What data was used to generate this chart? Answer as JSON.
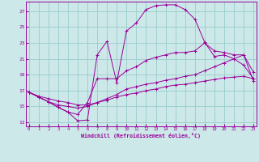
{
  "xlabel": "Windchill (Refroidissement éolien,°C)",
  "bg_color": "#cce8e8",
  "grid_color": "#99cccc",
  "line_color": "#990099",
  "x_ticks": [
    0,
    1,
    2,
    3,
    4,
    5,
    6,
    7,
    8,
    9,
    10,
    11,
    12,
    13,
    14,
    15,
    16,
    17,
    18,
    19,
    20,
    21,
    22,
    23
  ],
  "y_ticks": [
    13,
    15,
    17,
    19,
    21,
    23,
    25,
    27
  ],
  "ylim": [
    12.5,
    28.2
  ],
  "xlim": [
    -0.3,
    23.3
  ],
  "line1_y": [
    16.8,
    16.2,
    15.6,
    14.9,
    14.3,
    13.2,
    13.3,
    21.5,
    23.2,
    18.0,
    24.5,
    25.5,
    27.2,
    27.7,
    27.8,
    27.8,
    27.2,
    26.0,
    23.1,
    21.3,
    21.5,
    21.0,
    20.2,
    18.5
  ],
  "line2_y": [
    16.8,
    16.2,
    15.6,
    14.9,
    14.3,
    14.0,
    15.5,
    18.5,
    18.5,
    18.5,
    19.5,
    20.0,
    20.8,
    21.2,
    21.5,
    21.8,
    21.8,
    22.0,
    23.0,
    22.0,
    21.8,
    21.5,
    21.5,
    19.3
  ],
  "line3_y": [
    16.8,
    16.2,
    15.6,
    15.2,
    15.0,
    14.8,
    15.0,
    15.5,
    16.0,
    16.5,
    17.2,
    17.5,
    17.8,
    18.0,
    18.3,
    18.5,
    18.8,
    19.0,
    19.5,
    20.0,
    20.5,
    21.0,
    21.5,
    18.2
  ],
  "line4_y": [
    16.8,
    16.3,
    16.0,
    15.7,
    15.5,
    15.2,
    15.2,
    15.5,
    15.8,
    16.2,
    16.5,
    16.7,
    17.0,
    17.2,
    17.5,
    17.7,
    17.8,
    18.0,
    18.2,
    18.4,
    18.6,
    18.7,
    18.8,
    18.5
  ]
}
